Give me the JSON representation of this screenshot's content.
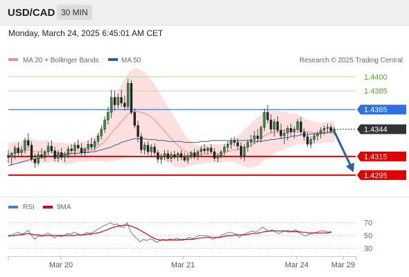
{
  "header": {
    "symbol": "USD/CAD",
    "timeframe": "30 MIN",
    "datetime": "Monday, March 24, 2025 6:45:01 AM CET"
  },
  "chart_data": [
    {
      "type": "line",
      "panel": "price",
      "legend": [
        {
          "name": "MA 20 + Bollinger Bands",
          "color": "#f08b8b"
        },
        {
          "name": "MA 50",
          "color": "#2f5d9e"
        }
      ],
      "credit": "Research © 2025 Trading Central",
      "ylim": [
        1.4275,
        1.4408
      ],
      "x_ticks": [
        "Mar 20",
        "Mar 21",
        "Mar 24",
        "Mar 29"
      ],
      "levels": [
        {
          "value": 1.44,
          "label": "1.4400",
          "color": "#b7dba0",
          "text_color": "#5a9e2f",
          "style": "target"
        },
        {
          "value": 1.4385,
          "label": "1.4385",
          "color": "#b7dba0",
          "text_color": "#5a9e2f",
          "style": "target"
        },
        {
          "value": 1.4365,
          "label": "1.4365",
          "color": "#2e6fe6",
          "text_color": "#ffffff",
          "style": "pivot"
        },
        {
          "value": 1.4344,
          "label": "1.4344",
          "color": "#333333",
          "text_color": "#ffffff",
          "style": "current"
        },
        {
          "value": 1.4315,
          "label": "1.4315",
          "color": "#e00000",
          "text_color": "#ffffff",
          "style": "support"
        },
        {
          "value": 1.4295,
          "label": "1.4295",
          "color": "#e00000",
          "text_color": "#ffffff",
          "style": "support"
        }
      ],
      "forecast_arrow": {
        "from": 1.4342,
        "to": 1.4298,
        "color": "#2f5d9e"
      },
      "candles": [
        [
          1.4316,
          1.4322,
          1.4308,
          1.4314
        ],
        [
          1.4314,
          1.432,
          1.4306,
          1.4318
        ],
        [
          1.4318,
          1.4327,
          1.4312,
          1.4324
        ],
        [
          1.4324,
          1.433,
          1.4316,
          1.4319
        ],
        [
          1.4319,
          1.4326,
          1.4314,
          1.4322
        ],
        [
          1.4322,
          1.4335,
          1.4318,
          1.4332
        ],
        [
          1.4332,
          1.434,
          1.4323,
          1.4327
        ],
        [
          1.4327,
          1.4331,
          1.431,
          1.4312
        ],
        [
          1.4312,
          1.4318,
          1.4303,
          1.4308
        ],
        [
          1.4308,
          1.432,
          1.4305,
          1.4317
        ],
        [
          1.4317,
          1.4324,
          1.4312,
          1.4315
        ],
        [
          1.4315,
          1.4322,
          1.431,
          1.432
        ],
        [
          1.432,
          1.433,
          1.4316,
          1.4326
        ],
        [
          1.4326,
          1.4332,
          1.4318,
          1.4321
        ],
        [
          1.4321,
          1.4325,
          1.431,
          1.4313
        ],
        [
          1.4313,
          1.4322,
          1.4309,
          1.4319
        ],
        [
          1.4319,
          1.4324,
          1.4311,
          1.4314
        ],
        [
          1.4314,
          1.432,
          1.4309,
          1.4317
        ],
        [
          1.4317,
          1.4326,
          1.4313,
          1.4323
        ],
        [
          1.4323,
          1.4328,
          1.4318,
          1.4321
        ],
        [
          1.4321,
          1.433,
          1.4316,
          1.4327
        ],
        [
          1.4327,
          1.4333,
          1.4322,
          1.4324
        ],
        [
          1.4324,
          1.4329,
          1.4316,
          1.4319
        ],
        [
          1.4319,
          1.4325,
          1.4315,
          1.4323
        ],
        [
          1.4323,
          1.4332,
          1.4319,
          1.4328
        ],
        [
          1.4328,
          1.4335,
          1.4322,
          1.4325
        ],
        [
          1.4325,
          1.4334,
          1.4321,
          1.4331
        ],
        [
          1.4331,
          1.434,
          1.4327,
          1.4337
        ],
        [
          1.4337,
          1.4348,
          1.4333,
          1.4344
        ],
        [
          1.4344,
          1.4358,
          1.434,
          1.4354
        ],
        [
          1.4354,
          1.4368,
          1.4349,
          1.4362
        ],
        [
          1.4362,
          1.4386,
          1.4356,
          1.4378
        ],
        [
          1.4378,
          1.4385,
          1.4364,
          1.437
        ],
        [
          1.437,
          1.4382,
          1.4366,
          1.4378
        ],
        [
          1.4378,
          1.4386,
          1.4368,
          1.4372
        ],
        [
          1.4372,
          1.438,
          1.4364,
          1.4368
        ],
        [
          1.4368,
          1.4398,
          1.4365,
          1.4393
        ],
        [
          1.4393,
          1.4396,
          1.436,
          1.4362
        ],
        [
          1.4362,
          1.4366,
          1.4345,
          1.4348
        ],
        [
          1.4348,
          1.4353,
          1.433,
          1.4336
        ],
        [
          1.4336,
          1.434,
          1.4318,
          1.4322
        ],
        [
          1.4322,
          1.433,
          1.4317,
          1.4327
        ],
        [
          1.4327,
          1.4331,
          1.4316,
          1.432
        ],
        [
          1.432,
          1.4328,
          1.4314,
          1.4325
        ],
        [
          1.4325,
          1.4329,
          1.4316,
          1.4319
        ],
        [
          1.4319,
          1.4322,
          1.4308,
          1.4312
        ],
        [
          1.4312,
          1.4318,
          1.4307,
          1.4315
        ],
        [
          1.4315,
          1.4322,
          1.4311,
          1.4318
        ],
        [
          1.4318,
          1.4322,
          1.431,
          1.4313
        ],
        [
          1.4313,
          1.432,
          1.4309,
          1.4317
        ],
        [
          1.4317,
          1.4321,
          1.4312,
          1.4314
        ],
        [
          1.4314,
          1.432,
          1.431,
          1.4318
        ],
        [
          1.4318,
          1.4322,
          1.4311,
          1.4314
        ],
        [
          1.4314,
          1.4319,
          1.4309,
          1.4311
        ],
        [
          1.4311,
          1.4318,
          1.4307,
          1.4316
        ],
        [
          1.4316,
          1.4321,
          1.4312,
          1.4319
        ],
        [
          1.4319,
          1.4323,
          1.4312,
          1.4315
        ],
        [
          1.4315,
          1.4322,
          1.4311,
          1.432
        ],
        [
          1.432,
          1.4326,
          1.4316,
          1.4323
        ],
        [
          1.4323,
          1.4328,
          1.4318,
          1.4321
        ],
        [
          1.4321,
          1.4325,
          1.4317,
          1.4324
        ],
        [
          1.4324,
          1.4328,
          1.4318,
          1.432
        ],
        [
          1.432,
          1.4324,
          1.431,
          1.4313
        ],
        [
          1.4313,
          1.4318,
          1.4309,
          1.4316
        ],
        [
          1.4316,
          1.4322,
          1.4313,
          1.432
        ],
        [
          1.432,
          1.4328,
          1.4316,
          1.4325
        ],
        [
          1.4325,
          1.4331,
          1.432,
          1.4328
        ],
        [
          1.4328,
          1.4335,
          1.4323,
          1.4332
        ],
        [
          1.4332,
          1.4336,
          1.4326,
          1.433
        ],
        [
          1.433,
          1.4334,
          1.4322,
          1.4326
        ],
        [
          1.4326,
          1.433,
          1.4312,
          1.4316
        ],
        [
          1.4316,
          1.4328,
          1.431,
          1.4325
        ],
        [
          1.4325,
          1.4333,
          1.432,
          1.433
        ],
        [
          1.433,
          1.4338,
          1.4325,
          1.4333
        ],
        [
          1.4333,
          1.4342,
          1.4328,
          1.4337
        ],
        [
          1.4337,
          1.4344,
          1.433,
          1.4334
        ],
        [
          1.4334,
          1.4348,
          1.433,
          1.4346
        ],
        [
          1.4346,
          1.4366,
          1.4342,
          1.4362
        ],
        [
          1.4362,
          1.437,
          1.435,
          1.4354
        ],
        [
          1.4354,
          1.436,
          1.434,
          1.4344
        ],
        [
          1.4344,
          1.4355,
          1.4336,
          1.4352
        ],
        [
          1.4352,
          1.4358,
          1.434,
          1.4343
        ],
        [
          1.4343,
          1.435,
          1.4334,
          1.4337
        ],
        [
          1.4337,
          1.4344,
          1.4328,
          1.434
        ],
        [
          1.434,
          1.4348,
          1.4332,
          1.4345
        ],
        [
          1.4345,
          1.435,
          1.4337,
          1.4341
        ],
        [
          1.4341,
          1.4347,
          1.4334,
          1.4344
        ],
        [
          1.4344,
          1.4355,
          1.434,
          1.4352
        ],
        [
          1.4352,
          1.4357,
          1.4338,
          1.4341
        ],
        [
          1.4341,
          1.4345,
          1.4332,
          1.4336
        ],
        [
          1.4336,
          1.4341,
          1.4325,
          1.4328
        ],
        [
          1.4328,
          1.4336,
          1.4324,
          1.4333
        ],
        [
          1.4333,
          1.434,
          1.4329,
          1.4337
        ],
        [
          1.4337,
          1.4342,
          1.4332,
          1.4339
        ],
        [
          1.4339,
          1.4346,
          1.4334,
          1.4343
        ],
        [
          1.4343,
          1.4348,
          1.4338,
          1.4345
        ],
        [
          1.4345,
          1.435,
          1.434,
          1.4346
        ],
        [
          1.4346,
          1.4349,
          1.4339,
          1.4342
        ],
        [
          1.4342,
          1.4347,
          1.4338,
          1.4344
        ]
      ],
      "ma20": [
        1.4318,
        1.4318,
        1.4319,
        1.4319,
        1.432,
        1.4321,
        1.4322,
        1.4321,
        1.432,
        1.432,
        1.432,
        1.432,
        1.432,
        1.432,
        1.4319,
        1.4319,
        1.4319,
        1.4318,
        1.4318,
        1.4318,
        1.4319,
        1.432,
        1.432,
        1.432,
        1.4321,
        1.4322,
        1.4323,
        1.4325,
        1.4328,
        1.4331,
        1.4335,
        1.434,
        1.4344,
        1.4348,
        1.4352,
        1.4356,
        1.436,
        1.4362,
        1.4363,
        1.4363,
        1.4362,
        1.4361,
        1.4359,
        1.4357,
        1.4354,
        1.435,
        1.4346,
        1.4342,
        1.4338,
        1.4334,
        1.433,
        1.4327,
        1.4324,
        1.4321,
        1.4319,
        1.4318,
        1.4317,
        1.4317,
        1.4317,
        1.4318,
        1.4318,
        1.4318,
        1.4318,
        1.4318,
        1.4318,
        1.4319,
        1.432,
        1.4321,
        1.4322,
        1.4322,
        1.4323,
        1.4324,
        1.4325,
        1.4327,
        1.4329,
        1.4331,
        1.4334,
        1.4337,
        1.4339,
        1.434,
        1.4341,
        1.4342,
        1.4342,
        1.4343,
        1.4343,
        1.4343,
        1.4344,
        1.4344,
        1.4343,
        1.4342,
        1.4341,
        1.4341,
        1.434,
        1.434,
        1.434,
        1.4341,
        1.4341,
        1.4341,
        1.4342
      ],
      "ma50": [
        1.4305,
        1.4306,
        1.4307,
        1.4308,
        1.4309,
        1.431,
        1.4311,
        1.4312,
        1.4312,
        1.4313,
        1.4314,
        1.4314,
        1.4315,
        1.4315,
        1.4316,
        1.4316,
        1.4317,
        1.4317,
        1.4317,
        1.4318,
        1.4318,
        1.4318,
        1.4319,
        1.4319,
        1.4319,
        1.432,
        1.432,
        1.4321,
        1.4322,
        1.4323,
        1.4324,
        1.4325,
        1.4327,
        1.4328,
        1.433,
        1.4331,
        1.4332,
        1.4333,
        1.4334,
        1.4334,
        1.4334,
        1.4334,
        1.4333,
        1.4333,
        1.4333,
        1.4332,
        1.4332,
        1.4332,
        1.4331,
        1.4331,
        1.4331,
        1.4331,
        1.4331,
        1.433,
        1.433,
        1.433,
        1.433,
        1.433,
        1.4331,
        1.4331,
        1.4331,
        1.4332,
        1.4332,
        1.4332,
        1.4332,
        1.4332,
        1.4332,
        1.4332,
        1.4332,
        1.4332,
        1.4332,
        1.4332,
        1.4332,
        1.4332,
        1.4331,
        1.4331,
        1.4331,
        1.4332,
        1.4332,
        1.4333,
        1.4333,
        1.4334,
        1.4334,
        1.4335,
        1.4335,
        1.4336,
        1.4337,
        1.4337,
        1.4338,
        1.4338,
        1.4338,
        1.4339,
        1.4339,
        1.4339,
        1.434,
        1.434,
        1.434,
        1.4341,
        1.4341
      ],
      "bb_width": [
        0.0012,
        0.0012,
        0.0012,
        0.0012,
        0.0012,
        0.0013,
        0.0013,
        0.0013,
        0.0013,
        0.0012,
        0.0012,
        0.0012,
        0.0012,
        0.0011,
        0.0011,
        0.0011,
        0.0011,
        0.0011,
        0.0011,
        0.0011,
        0.0011,
        0.0011,
        0.0011,
        0.0011,
        0.0011,
        0.0012,
        0.0013,
        0.0015,
        0.0018,
        0.0022,
        0.0026,
        0.003,
        0.0034,
        0.0037,
        0.004,
        0.0042,
        0.0044,
        0.0045,
        0.0046,
        0.0046,
        0.0045,
        0.0044,
        0.0042,
        0.004,
        0.0038,
        0.0036,
        0.0034,
        0.0032,
        0.003,
        0.0028,
        0.0026,
        0.0024,
        0.0021,
        0.0018,
        0.0015,
        0.0013,
        0.0011,
        0.001,
        0.001,
        0.001,
        0.001,
        0.001,
        0.001,
        0.001,
        0.001,
        0.001,
        0.0011,
        0.0012,
        0.0013,
        0.0015,
        0.0017,
        0.002,
        0.0022,
        0.0024,
        0.0025,
        0.0026,
        0.0026,
        0.0026,
        0.0025,
        0.0024,
        0.0023,
        0.0022,
        0.0021,
        0.002,
        0.0019,
        0.0018,
        0.0017,
        0.0016,
        0.0015,
        0.0014,
        0.0013,
        0.0012,
        0.0012,
        0.0011,
        0.0011,
        0.0011,
        0.0011,
        0.0011,
        0.0011
      ]
    },
    {
      "type": "line",
      "panel": "rsi",
      "series": [
        {
          "name": "RSI",
          "color": "#4a7fd4"
        },
        {
          "name": "9MA",
          "color": "#e00000"
        }
      ],
      "ylim": [
        20,
        80
      ],
      "y_ticks": [
        70,
        50,
        30
      ],
      "rsi": [
        48,
        50,
        53,
        55,
        52,
        54,
        58,
        50,
        44,
        49,
        48,
        51,
        54,
        51,
        46,
        50,
        48,
        50,
        53,
        52,
        55,
        53,
        50,
        52,
        55,
        53,
        56,
        59,
        62,
        65,
        67,
        70,
        66,
        68,
        64,
        62,
        70,
        57,
        50,
        45,
        40,
        44,
        42,
        45,
        43,
        39,
        42,
        44,
        42,
        45,
        43,
        46,
        44,
        42,
        45,
        47,
        45,
        48,
        50,
        49,
        50,
        48,
        44,
        46,
        48,
        51,
        53,
        55,
        54,
        52,
        47,
        51,
        53,
        55,
        57,
        55,
        58,
        63,
        60,
        56,
        59,
        55,
        53,
        55,
        57,
        55,
        56,
        59,
        55,
        52,
        49,
        51,
        53,
        54,
        56,
        57,
        57,
        55,
        56
      ],
      "rsi_ma9": [
        50,
        50,
        50,
        51,
        51,
        52,
        53,
        52,
        51,
        51,
        50,
        50,
        50,
        50,
        50,
        50,
        50,
        50,
        50,
        50,
        50,
        51,
        51,
        51,
        52,
        52,
        53,
        54,
        55,
        57,
        59,
        61,
        63,
        64,
        65,
        66,
        66,
        65,
        63,
        61,
        58,
        55,
        52,
        49,
        46,
        44,
        43,
        43,
        43,
        43,
        43,
        43,
        43,
        44,
        44,
        44,
        44,
        45,
        46,
        46,
        47,
        47,
        47,
        47,
        47,
        48,
        49,
        50,
        50,
        51,
        51,
        51,
        51,
        52,
        53,
        53,
        54,
        55,
        56,
        57,
        57,
        57,
        57,
        57,
        57,
        57,
        56,
        56,
        56,
        55,
        55,
        54,
        54,
        54,
        54,
        54,
        54,
        54,
        55
      ]
    }
  ]
}
